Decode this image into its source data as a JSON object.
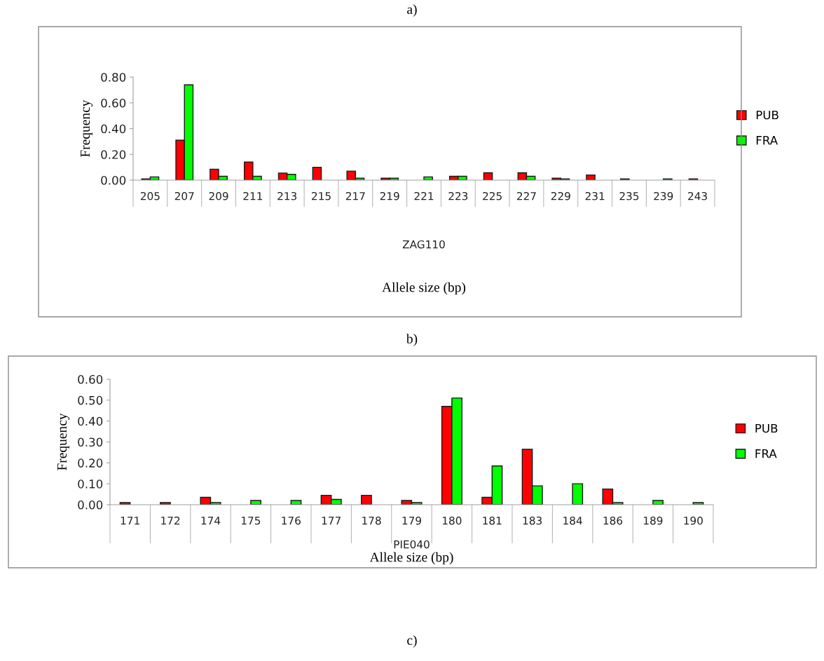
{
  "chart_data": [
    {
      "type": "bar",
      "title": "a)",
      "xlabel": "Allele size (bp)",
      "ylabel": "Frequency",
      "annotations": [
        "ZAG110"
      ],
      "categories": [
        "205",
        "207",
        "209",
        "211",
        "213",
        "215",
        "217",
        "219",
        "221",
        "223",
        "225",
        "227",
        "229",
        "231",
        "235",
        "239",
        "243"
      ],
      "series": [
        {
          "name": "PUB",
          "color": "#ff0000",
          "values": [
            0.01,
            0.31,
            0.085,
            0.14,
            0.055,
            0.1,
            0.07,
            0.015,
            null,
            0.03,
            0.057,
            0.057,
            0.015,
            0.04,
            0.01,
            null,
            0.01
          ]
        },
        {
          "name": "FRA",
          "color": "#00ff00",
          "values": [
            0.025,
            0.74,
            0.03,
            0.03,
            0.045,
            null,
            0.015,
            0.015,
            0.025,
            0.03,
            null,
            0.03,
            0.01,
            null,
            null,
            0.01,
            null
          ]
        }
      ],
      "ylim": [
        0,
        0.8
      ],
      "yticks": [
        {
          "value": 0,
          "label": "0.00"
        },
        {
          "value": 0.2,
          "label": "0.20"
        },
        {
          "value": 0.4,
          "label": "0.40"
        },
        {
          "value": 0.6,
          "label": "0.60"
        },
        {
          "value": 0.8,
          "label": "0.80"
        }
      ],
      "grid": false,
      "legend": "right"
    },
    {
      "type": "bar",
      "title": "b)",
      "xlabel": "Allele size (bp)",
      "ylabel": "Frequency",
      "annotations": [
        "PIE040",
        "c)"
      ],
      "categories": [
        "171",
        "172",
        "174",
        "175",
        "176",
        "177",
        "178",
        "179",
        "180",
        "181",
        "183",
        "184",
        "186",
        "189",
        "190"
      ],
      "series": [
        {
          "name": "PUB",
          "color": "#ff0000",
          "values": [
            0.01,
            0.01,
            0.035,
            null,
            null,
            0.045,
            0.045,
            0.02,
            0.47,
            0.035,
            0.265,
            null,
            0.075,
            null,
            null
          ]
        },
        {
          "name": "FRA",
          "color": "#00ff00",
          "values": [
            null,
            null,
            0.01,
            0.02,
            0.02,
            0.025,
            null,
            0.01,
            0.51,
            0.185,
            0.09,
            0.1,
            0.01,
            0.02,
            0.01
          ]
        }
      ],
      "ylim": [
        0,
        0.6
      ],
      "yticks": [
        {
          "value": 0,
          "label": "0.00"
        },
        {
          "value": 0.1,
          "label": "0.10"
        },
        {
          "value": 0.2,
          "label": "0.20"
        },
        {
          "value": 0.3,
          "label": "0.30"
        },
        {
          "value": 0.4,
          "label": "0.40"
        },
        {
          "value": 0.5,
          "label": "0.50"
        },
        {
          "value": 0.6,
          "label": "0.60"
        }
      ],
      "grid": false,
      "legend": "right"
    }
  ]
}
